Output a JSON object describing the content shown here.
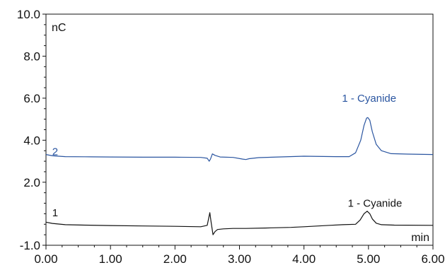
{
  "chart_data": {
    "type": "line",
    "xunit": "min",
    "yunit": "nC",
    "xlim": [
      0,
      6
    ],
    "ylim": [
      -1,
      10
    ],
    "x_ticks": [
      0,
      1,
      2,
      3,
      4,
      5,
      6
    ],
    "x_tick_labels": [
      "0.00",
      "1.00",
      "2.00",
      "3.00",
      "4.00",
      "5.00",
      "6.00"
    ],
    "y_ticks": [
      -1,
      2,
      4,
      6,
      8,
      10
    ],
    "y_tick_labels": [
      "-1.0",
      "2.0",
      "4.0",
      "6.0",
      "8.0",
      "10.0"
    ],
    "grid": false,
    "series": [
      {
        "name": "2",
        "color": "#2a55a0",
        "peak_label": "1 - Cyanide",
        "label_x": 5.01,
        "label_y": 6.0,
        "number_label_x": 0.03,
        "number_label_y": 3.45,
        "x": [
          0.0,
          0.1,
          0.3,
          0.6,
          1.0,
          1.5,
          2.0,
          2.4,
          2.5,
          2.53,
          2.55,
          2.58,
          2.62,
          2.7,
          2.9,
          3.05,
          3.1,
          3.15,
          3.3,
          3.6,
          4.0,
          4.5,
          4.7,
          4.8,
          4.88,
          4.93,
          4.97,
          4.99,
          5.02,
          5.06,
          5.12,
          5.2,
          5.35,
          5.6,
          6.0
        ],
        "y": [
          3.32,
          3.26,
          3.22,
          3.21,
          3.2,
          3.19,
          3.19,
          3.18,
          3.14,
          3.0,
          3.1,
          3.35,
          3.28,
          3.2,
          3.18,
          3.1,
          3.08,
          3.12,
          3.17,
          3.2,
          3.24,
          3.22,
          3.22,
          3.4,
          4.0,
          4.7,
          5.05,
          5.08,
          4.95,
          4.4,
          3.8,
          3.5,
          3.36,
          3.34,
          3.32
        ]
      },
      {
        "name": "1",
        "color": "#111111",
        "peak_label": "1 - Cyanide",
        "label_x": 5.1,
        "label_y": 1.0,
        "number_label_x": 0.03,
        "number_label_y": 0.55,
        "x": [
          0.0,
          0.1,
          0.3,
          0.6,
          1.0,
          1.5,
          2.0,
          2.4,
          2.5,
          2.54,
          2.56,
          2.59,
          2.62,
          2.66,
          2.75,
          2.9,
          3.1,
          3.4,
          3.8,
          4.0,
          4.4,
          4.6,
          4.8,
          4.87,
          4.93,
          4.98,
          5.02,
          5.06,
          5.12,
          5.2,
          5.4,
          6.0
        ],
        "y": [
          0.1,
          0.04,
          -0.02,
          -0.04,
          -0.06,
          -0.08,
          -0.1,
          -0.12,
          -0.05,
          0.55,
          0.1,
          -0.5,
          -0.35,
          -0.25,
          -0.22,
          -0.2,
          -0.2,
          -0.18,
          -0.15,
          -0.12,
          -0.05,
          -0.02,
          0.0,
          0.2,
          0.5,
          0.62,
          0.5,
          0.25,
          0.05,
          -0.02,
          -0.04,
          -0.05
        ]
      }
    ]
  }
}
